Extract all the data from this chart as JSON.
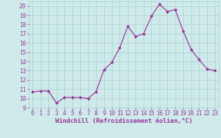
{
  "x": [
    0,
    1,
    2,
    3,
    4,
    5,
    6,
    7,
    8,
    9,
    10,
    11,
    12,
    13,
    14,
    15,
    16,
    17,
    18,
    19,
    20,
    21,
    22,
    23
  ],
  "y": [
    10.7,
    10.8,
    10.8,
    9.5,
    10.1,
    10.1,
    10.1,
    10.0,
    10.7,
    13.1,
    13.9,
    15.5,
    17.8,
    16.7,
    17.0,
    18.9,
    20.2,
    19.4,
    19.6,
    17.3,
    15.3,
    14.2,
    13.2,
    13.0
  ],
  "line_color": "#993399",
  "marker": "D",
  "marker_size": 2.0,
  "linewidth": 0.9,
  "bg_color": "#ceeaea",
  "grid_color": "#aacece",
  "xlabel": "Windchill (Refroidissement éolien,°C)",
  "xlim": [
    -0.5,
    23.5
  ],
  "ylim": [
    9,
    20.5
  ],
  "yticks": [
    9,
    10,
    11,
    12,
    13,
    14,
    15,
    16,
    17,
    18,
    19,
    20
  ],
  "xticks": [
    0,
    1,
    2,
    3,
    4,
    5,
    6,
    7,
    8,
    9,
    10,
    11,
    12,
    13,
    14,
    15,
    16,
    17,
    18,
    19,
    20,
    21,
    22,
    23
  ],
  "tick_color": "#993399",
  "label_color": "#993399",
  "xlabel_fontsize": 6.5,
  "tick_fontsize": 5.8
}
